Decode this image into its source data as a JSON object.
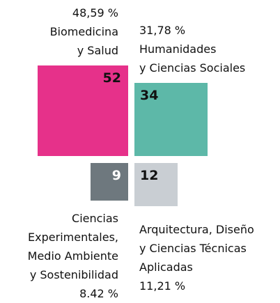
{
  "chart_data": {
    "type": "squares",
    "categories": [
      "Biomedicina\ny Salud",
      "Humanidades\ny Ciencias Sociales",
      "Ciencias\nExperimentales,\nMedio Ambiente\ny Sostenibilidad",
      "Arquitectura, Diseño\ny Ciencias Técnicas\nAplicadas"
    ],
    "values": [
      52,
      34,
      9,
      12
    ],
    "shares": [
      48.59,
      31.78,
      8.42,
      11.21
    ],
    "share_labels": [
      "48,59 %",
      "31,78 %",
      "8.42 %",
      "11,21 %"
    ],
    "colors": [
      "#e6318a",
      "#5db8a8",
      "#6e787e",
      "#c9ced3"
    ],
    "value_label_colors": [
      "#111111",
      "#111111",
      "#ffffff",
      "#111111"
    ]
  }
}
